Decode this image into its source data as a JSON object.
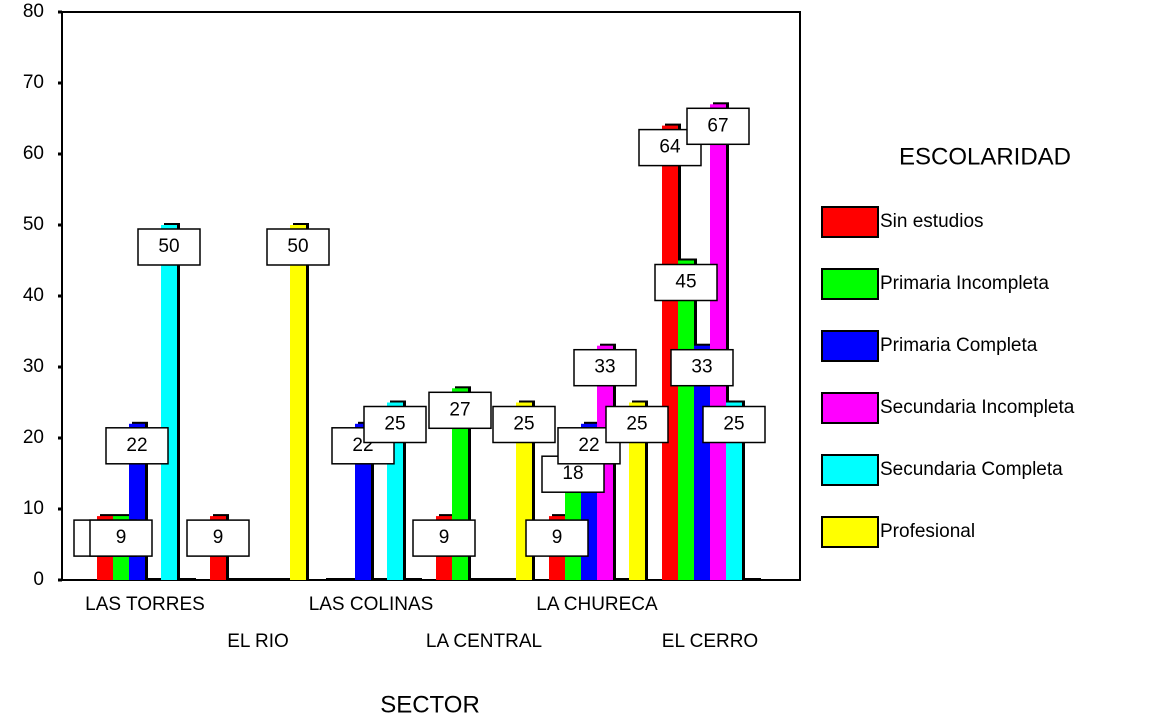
{
  "chart_data": {
    "type": "bar",
    "x_label": "SECTOR",
    "legend_title": "ESCOLARIDAD",
    "legend_position": "right",
    "categories": [
      "LAS TORRES",
      "EL RIO",
      "LAS COLINAS",
      "LA CENTRAL",
      "LA CHURECA",
      "EL CERRO"
    ],
    "series": [
      {
        "name": "Sin estudios",
        "color": "#ff0000",
        "values": [
          9,
          9,
          0,
          9,
          9,
          64
        ]
      },
      {
        "name": "Primaria Incompleta",
        "color": "#00ff00",
        "values": [
          9,
          0,
          0,
          27,
          18,
          45
        ]
      },
      {
        "name": "Primaria Completa",
        "color": "#0000ff",
        "values": [
          22,
          0,
          22,
          0,
          22,
          33
        ]
      },
      {
        "name": "Secundaria Incompleta",
        "color": "#ff00ff",
        "values": [
          0,
          0,
          0,
          0,
          33,
          67
        ]
      },
      {
        "name": "Secundaria Completa",
        "color": "#00ffff",
        "values": [
          50,
          0,
          25,
          0,
          0,
          25
        ]
      },
      {
        "name": "Profesional",
        "color": "#ffff00",
        "values": [
          0,
          50,
          0,
          25,
          25,
          0
        ]
      }
    ],
    "ylim": [
      0,
      80
    ],
    "yticks": [
      0,
      10,
      20,
      30,
      40,
      50,
      60,
      70,
      80
    ],
    "grid": false
  }
}
